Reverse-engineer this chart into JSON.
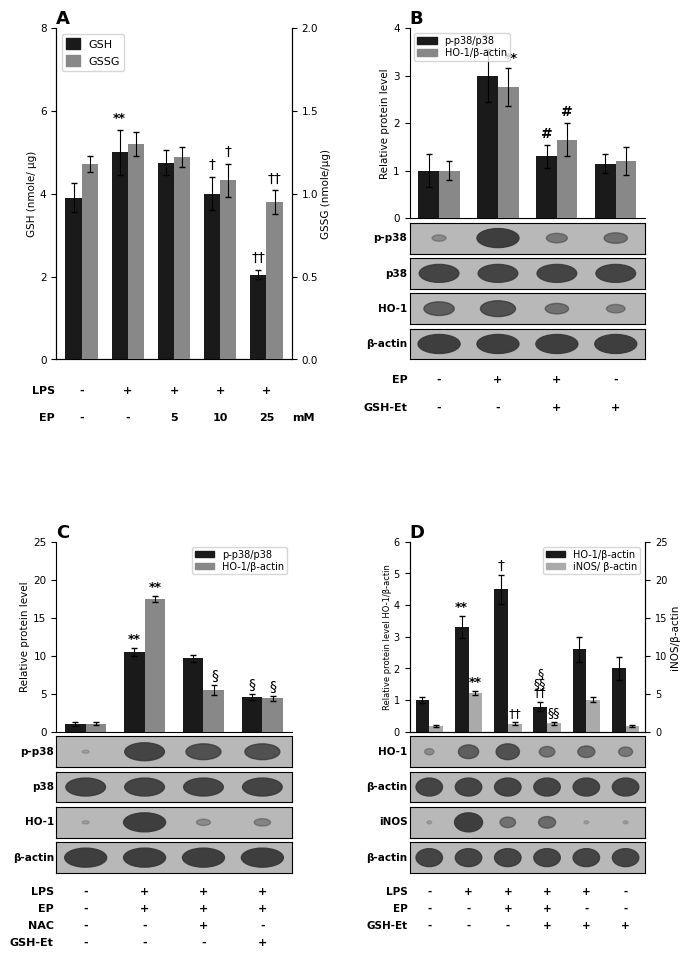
{
  "panel_A": {
    "label": "A",
    "GSH_values": [
      3.9,
      5.0,
      4.75,
      4.0,
      2.05
    ],
    "GSH_errors": [
      0.35,
      0.55,
      0.3,
      0.4,
      0.12
    ],
    "GSSG_values": [
      1.18,
      1.3,
      1.22,
      1.08,
      0.95
    ],
    "GSSG_errors": [
      0.05,
      0.07,
      0.06,
      0.1,
      0.07
    ],
    "GSH_color": "#1a1a1a",
    "GSSG_color": "#888888",
    "ylabel_left": "GSH (nmole/ μg)",
    "ylabel_right": "GSSG (nmole/μg)",
    "ylim_left": [
      0,
      8
    ],
    "ylim_right": [
      0,
      2.0
    ],
    "yticks_left": [
      0,
      2,
      4,
      6,
      8
    ],
    "yticks_right": [
      0.0,
      0.5,
      1.0,
      1.5,
      2.0
    ],
    "xticklabels_LPS": [
      "-",
      "+",
      "+",
      "+",
      "+"
    ],
    "xticklabels_EP": [
      "-",
      "-",
      "5",
      "10",
      "25"
    ]
  },
  "panel_B": {
    "label": "B",
    "pp38_values": [
      1.0,
      3.0,
      1.3,
      1.15
    ],
    "pp38_errors": [
      0.35,
      0.55,
      0.25,
      0.2
    ],
    "HO1_values": [
      1.0,
      2.75,
      1.65,
      1.2
    ],
    "HO1_errors": [
      0.2,
      0.4,
      0.35,
      0.3
    ],
    "pp38_color": "#1a1a1a",
    "HO1_color": "#888888",
    "ylabel": "Relative protein level",
    "ylim": [
      0,
      4
    ],
    "yticks": [
      0,
      1,
      2,
      3,
      4
    ],
    "xticklabels_EP": [
      "-",
      "+",
      "+",
      "-"
    ],
    "xticklabels_GSHEt": [
      "-",
      "-",
      "+",
      "+"
    ],
    "wb_pp38": [
      0.3,
      0.9,
      0.45,
      0.5
    ],
    "wb_p38": [
      0.85,
      0.85,
      0.85,
      0.85
    ],
    "wb_HO1": [
      0.65,
      0.75,
      0.5,
      0.4
    ],
    "wb_bactin": [
      0.9,
      0.9,
      0.9,
      0.9
    ]
  },
  "panel_C": {
    "label": "C",
    "pp38_values": [
      1.0,
      10.5,
      9.7,
      4.6
    ],
    "pp38_errors": [
      0.25,
      0.5,
      0.45,
      0.4
    ],
    "HO1_values": [
      1.1,
      17.5,
      5.5,
      4.4
    ],
    "HO1_errors": [
      0.15,
      0.4,
      0.6,
      0.35
    ],
    "pp38_color": "#1a1a1a",
    "HO1_color": "#888888",
    "ylabel": "Relative protein level",
    "ylim": [
      0,
      25
    ],
    "yticks": [
      0,
      5,
      10,
      15,
      20,
      25
    ],
    "xticklabels_LPS": [
      "-",
      "+",
      "+",
      "+"
    ],
    "xticklabels_EP": [
      "-",
      "+",
      "+",
      "+"
    ],
    "xticklabels_NAC": [
      "-",
      "-",
      "+",
      "-"
    ],
    "xticklabels_GSHEt": [
      "-",
      "-",
      "-",
      "+"
    ],
    "wb_pp38": [
      0.15,
      0.85,
      0.75,
      0.75
    ],
    "wb_p38": [
      0.85,
      0.85,
      0.85,
      0.85
    ],
    "wb_HO1": [
      0.15,
      0.9,
      0.3,
      0.35
    ],
    "wb_bactin": [
      0.9,
      0.9,
      0.9,
      0.9
    ]
  },
  "panel_D": {
    "label": "D",
    "HO1_values": [
      1.0,
      3.3,
      4.5,
      0.8,
      2.6,
      2.0
    ],
    "HO1_errors": [
      0.1,
      0.35,
      0.45,
      0.15,
      0.4,
      0.35
    ],
    "iNOS_values": [
      0.8,
      5.1,
      1.1,
      1.15,
      4.25,
      0.8
    ],
    "iNOS_errors": [
      0.15,
      0.25,
      0.15,
      0.2,
      0.35,
      0.1
    ],
    "HO1_color": "#1a1a1a",
    "iNOS_color": "#aaaaaa",
    "ylabel_left": "Relative protein level HO-1/β-actin",
    "ylabel_right": "iNOS/β-actin",
    "ylim_left": [
      0,
      6
    ],
    "ylim_right": [
      0,
      25
    ],
    "yticks_left": [
      0,
      1,
      2,
      3,
      4,
      5,
      6
    ],
    "yticks_right": [
      0,
      5,
      10,
      15,
      20,
      25
    ],
    "xticklabels_LPS": [
      "-",
      "+",
      "+",
      "+",
      "+",
      "-"
    ],
    "xticklabels_EP": [
      "-",
      "-",
      "+",
      "+",
      "-",
      "-"
    ],
    "xticklabels_GSHEt": [
      "-",
      "-",
      "-",
      "+",
      "+",
      "+"
    ],
    "wb_HO1": [
      0.3,
      0.65,
      0.75,
      0.5,
      0.55,
      0.45
    ],
    "wb_bactin1": [
      0.85,
      0.85,
      0.85,
      0.85,
      0.85,
      0.85
    ],
    "wb_iNOS": [
      0.15,
      0.9,
      0.5,
      0.55,
      0.15,
      0.15
    ],
    "wb_bactin2": [
      0.85,
      0.85,
      0.85,
      0.85,
      0.85,
      0.85
    ]
  },
  "background_color": "#ffffff",
  "bar_width": 0.35,
  "wb_bg": "#b8b8b8",
  "wb_dark": "#383838"
}
